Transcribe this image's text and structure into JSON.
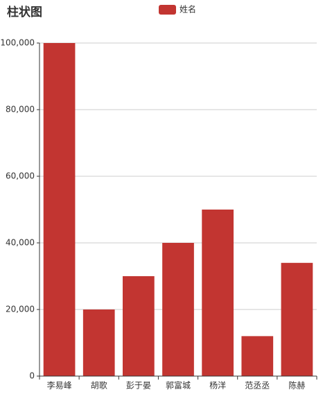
{
  "chart_data": {
    "type": "bar",
    "title": "柱状图",
    "categories": [
      "李易峰",
      "胡歌",
      "彭于晏",
      "郭富城",
      "杨洋",
      "范丞丞",
      "陈赫"
    ],
    "series": [
      {
        "name": "姓名",
        "color": "#c23531",
        "values": [
          100000,
          20000,
          30000,
          40000,
          50000,
          12000,
          34000
        ]
      }
    ],
    "ylim": [
      0,
      100000
    ],
    "yticks": [
      0,
      {
        "value": 20000,
        "label": "20,000"
      },
      {
        "value": 40000,
        "label": "40,000"
      },
      {
        "value": 60000,
        "label": "60,000"
      },
      {
        "value": 80000,
        "label": "80,000"
      },
      {
        "value": 100000,
        "label": "100,000"
      }
    ],
    "grid": true
  }
}
